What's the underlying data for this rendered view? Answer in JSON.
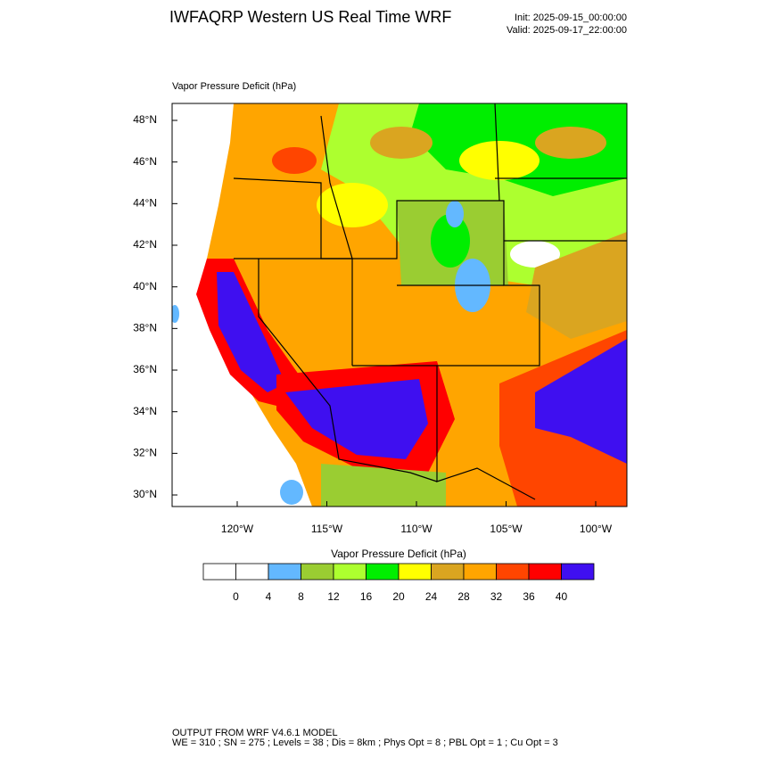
{
  "header": {
    "title": "IWFAQRP Western US Real Time WRF",
    "init": "Init: 2025-09-15_00:00:00",
    "valid": "Valid: 2025-09-17_22:00:00"
  },
  "map": {
    "field_label": "Vapor Pressure Deficit   (hPa)",
    "lat_labels": [
      "48°N",
      "46°N",
      "44°N",
      "42°N",
      "40°N",
      "38°N",
      "36°N",
      "34°N",
      "32°N",
      "30°N"
    ],
    "lon_labels": [
      "120°W",
      "115°W",
      "110°W",
      "105°W",
      "100°W"
    ]
  },
  "colorbar": {
    "title": "Vapor Pressure Deficit  (hPa)",
    "ticks": [
      0,
      4,
      8,
      12,
      16,
      20,
      24,
      28,
      32,
      36,
      40
    ],
    "colors": [
      "#ffffff",
      "#ffffff",
      "#63b8ff",
      "#9acd32",
      "#adff2f",
      "#00ee00",
      "#ffff00",
      "#daa520",
      "#ffa500",
      "#ff4500",
      "#ff0000",
      "#3f0ff0"
    ]
  },
  "footer": {
    "line1": "OUTPUT FROM WRF V4.6.1 MODEL",
    "line2": "WE = 310 ; SN = 275 ; Levels = 38 ; Dis = 8km ; Phys Opt = 8 ; PBL Opt = 1 ; Cu Opt = 3"
  }
}
